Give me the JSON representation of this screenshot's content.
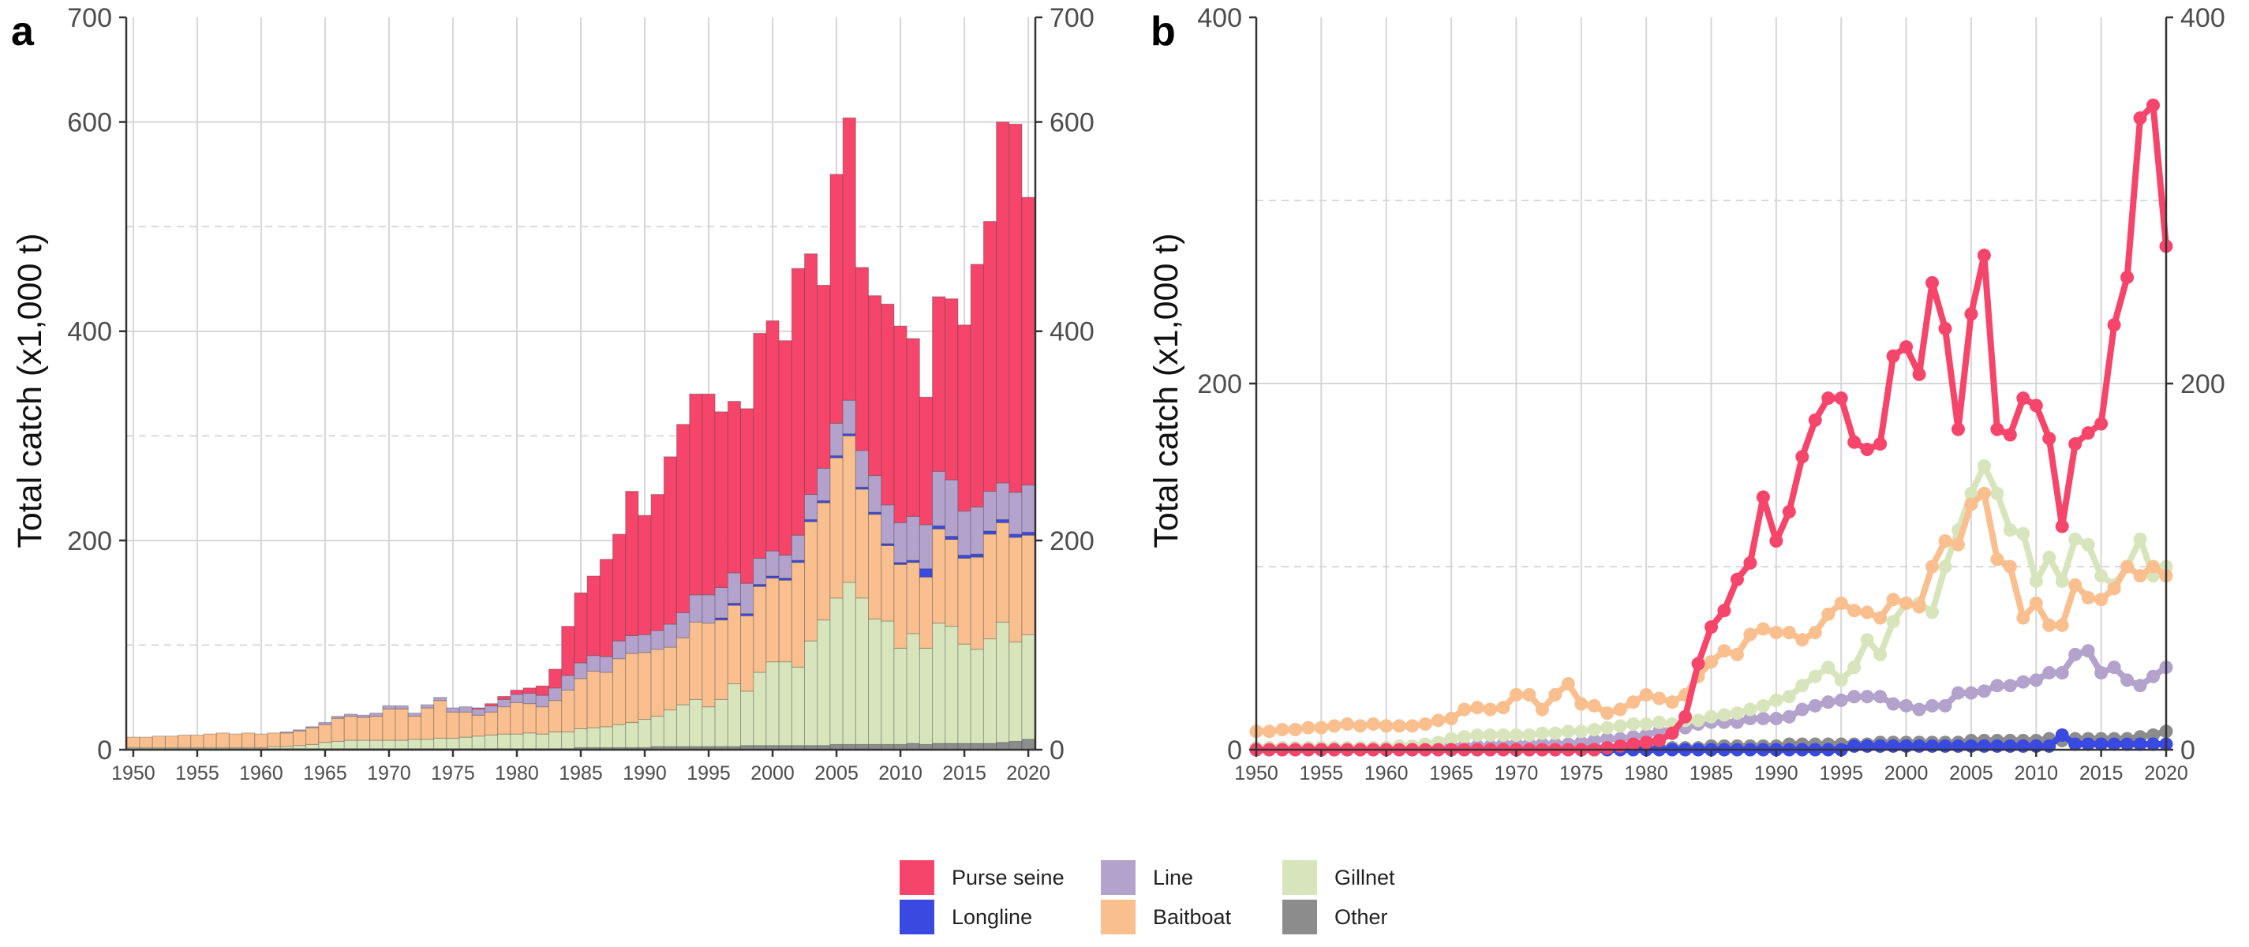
{
  "figure": {
    "panel_a_letter": "a",
    "panel_b_letter": "b",
    "y_axis_label": "Total catch (x1,000 t)"
  },
  "colors": {
    "Purse seine": "#f5456a",
    "Longline": "#3a49e0",
    "Line": "#b3a2cc",
    "Baitboat": "#f9bf8f",
    "Gillnet": "#d8e5bc",
    "Other": "#8c8c8c"
  },
  "legend": {
    "items": [
      {
        "name": "Purse seine",
        "color": "#f5456a"
      },
      {
        "name": "Longline",
        "color": "#3a49e0"
      },
      {
        "name": "Line",
        "color": "#b3a2cc"
      },
      {
        "name": "Baitboat",
        "color": "#f9bf8f"
      },
      {
        "name": "Gillnet",
        "color": "#d8e5bc"
      },
      {
        "name": "Other",
        "color": "#8c8c8c"
      }
    ]
  },
  "chart_data": [
    {
      "panel": "a",
      "type": "bar",
      "stacked": true,
      "title": "",
      "xlabel": "",
      "ylabel": "Total catch (x1,000 t)",
      "xlim": [
        1950,
        2020
      ],
      "ylim": [
        0,
        700
      ],
      "x_ticks": [
        "1950",
        "1955",
        "1960",
        "1965",
        "1970",
        "1975",
        "1980",
        "1985",
        "1990",
        "1995",
        "2000",
        "2005",
        "2010",
        "2015",
        "2020"
      ],
      "y_ticks": [
        "0",
        "200",
        "400",
        "600",
        "700"
      ],
      "grid": true,
      "secondary_y_axis": true,
      "x": [
        1950,
        1951,
        1952,
        1953,
        1954,
        1955,
        1956,
        1957,
        1958,
        1959,
        1960,
        1961,
        1962,
        1963,
        1964,
        1965,
        1966,
        1967,
        1968,
        1969,
        1970,
        1971,
        1972,
        1973,
        1974,
        1975,
        1976,
        1977,
        1978,
        1979,
        1980,
        1981,
        1982,
        1983,
        1984,
        1985,
        1986,
        1987,
        1988,
        1989,
        1990,
        1991,
        1992,
        1993,
        1994,
        1995,
        1996,
        1997,
        1998,
        1999,
        2000,
        2001,
        2002,
        2003,
        2004,
        2005,
        2006,
        2007,
        2008,
        2009,
        2010,
        2011,
        2012,
        2013,
        2014,
        2015,
        2016,
        2017,
        2018,
        2019,
        2020
      ],
      "series": [
        {
          "name": "Other",
          "values": [
            1,
            1,
            1,
            1,
            1,
            1,
            1,
            1,
            1,
            1,
            1,
            1,
            1,
            1,
            1,
            1,
            1,
            1,
            1,
            1,
            1,
            1,
            1,
            1,
            1,
            1,
            1,
            1,
            1,
            1,
            1,
            1,
            1,
            1,
            1,
            2,
            2,
            2,
            2,
            2,
            2,
            3,
            3,
            3,
            3,
            3,
            3,
            3,
            4,
            4,
            4,
            4,
            4,
            4,
            4,
            5,
            5,
            5,
            5,
            5,
            5,
            6,
            5,
            6,
            6,
            6,
            6,
            6,
            7,
            8,
            10
          ]
        },
        {
          "name": "Gillnet",
          "values": [
            1,
            1,
            1,
            1,
            1,
            1,
            1,
            1,
            1,
            1,
            1,
            2,
            2,
            3,
            4,
            6,
            7,
            8,
            8,
            8,
            8,
            8,
            9,
            9,
            10,
            10,
            11,
            12,
            13,
            14,
            14,
            15,
            14,
            16,
            16,
            18,
            19,
            20,
            22,
            24,
            27,
            29,
            35,
            40,
            45,
            38,
            45,
            60,
            52,
            70,
            80,
            80,
            75,
            100,
            120,
            140,
            155,
            140,
            120,
            118,
            92,
            105,
            92,
            115,
            112,
            95,
            90,
            100,
            115,
            95,
            100
          ]
        },
        {
          "name": "Baitboat",
          "values": [
            10,
            10,
            11,
            11,
            12,
            12,
            13,
            14,
            13,
            14,
            13,
            13,
            13,
            14,
            16,
            17,
            22,
            23,
            22,
            23,
            30,
            30,
            22,
            30,
            36,
            25,
            24,
            20,
            22,
            26,
            30,
            28,
            26,
            30,
            40,
            48,
            54,
            52,
            63,
            66,
            64,
            64,
            60,
            64,
            74,
            80,
            76,
            75,
            72,
            82,
            80,
            78,
            100,
            114,
            112,
            134,
            140,
            104,
            100,
            72,
            80,
            68,
            68,
            90,
            83,
            82,
            88,
            100,
            95,
            100,
            95
          ]
        },
        {
          "name": "Longline",
          "values": [
            0,
            0,
            0,
            0,
            0,
            0,
            0,
            0,
            0,
            0,
            0,
            0,
            0,
            0,
            0,
            0,
            0,
            0,
            0,
            0,
            0,
            0,
            0,
            0,
            0,
            0,
            0,
            0,
            0,
            0,
            0,
            0,
            0,
            0,
            0,
            0,
            0,
            0,
            0,
            0,
            0,
            0,
            0,
            0,
            0,
            0,
            2,
            2,
            2,
            2,
            2,
            2,
            2,
            2,
            2,
            2,
            2,
            2,
            2,
            2,
            2,
            2,
            8,
            3,
            3,
            3,
            3,
            3,
            3,
            3,
            3
          ]
        },
        {
          "name": "Line",
          "values": [
            0,
            0,
            0,
            0,
            0,
            0,
            0,
            0,
            0,
            0,
            0,
            0,
            1,
            1,
            1,
            2,
            2,
            2,
            2,
            3,
            3,
            3,
            3,
            3,
            3,
            4,
            5,
            6,
            6,
            7,
            8,
            10,
            11,
            12,
            14,
            15,
            15,
            15,
            17,
            17,
            17,
            18,
            22,
            24,
            26,
            27,
            29,
            29,
            29,
            25,
            24,
            22,
            24,
            24,
            31,
            31,
            32,
            35,
            35,
            37,
            38,
            42,
            42,
            52,
            54,
            42,
            45,
            38,
            35,
            40,
            45
          ]
        },
        {
          "name": "Purse seine",
          "values": [
            0,
            0,
            0,
            0,
            0,
            0,
            0,
            0,
            0,
            0,
            0,
            0,
            0,
            0,
            0,
            0,
            0,
            0,
            0,
            0,
            0,
            0,
            0,
            0,
            0,
            0,
            0,
            1,
            2,
            3,
            4,
            5,
            9,
            18,
            47,
            67,
            76,
            93,
            102,
            138,
            114,
            130,
            160,
            180,
            192,
            192,
            168,
            164,
            167,
            215,
            220,
            205,
            255,
            230,
            175,
            238,
            270,
            175,
            172,
            192,
            188,
            170,
            122,
            167,
            173,
            178,
            232,
            258,
            345,
            352,
            275
          ]
        }
      ]
    },
    {
      "panel": "b",
      "type": "line",
      "title": "",
      "xlabel": "",
      "ylabel": "Total catch (x1,000 t)",
      "xlim": [
        1950,
        2020
      ],
      "ylim": [
        0,
        400
      ],
      "x_ticks": [
        "1950",
        "1955",
        "1960",
        "1965",
        "1970",
        "1975",
        "1980",
        "1985",
        "1990",
        "1995",
        "2000",
        "2005",
        "2010",
        "2015",
        "2020"
      ],
      "y_ticks": [
        "0",
        "200",
        "400"
      ],
      "grid": true,
      "secondary_y_axis": true,
      "x": [
        1950,
        1951,
        1952,
        1953,
        1954,
        1955,
        1956,
        1957,
        1958,
        1959,
        1960,
        1961,
        1962,
        1963,
        1964,
        1965,
        1966,
        1967,
        1968,
        1969,
        1970,
        1971,
        1972,
        1973,
        1974,
        1975,
        1976,
        1977,
        1978,
        1979,
        1980,
        1981,
        1982,
        1983,
        1984,
        1985,
        1986,
        1987,
        1988,
        1989,
        1990,
        1991,
        1992,
        1993,
        1994,
        1995,
        1996,
        1997,
        1998,
        1999,
        2000,
        2001,
        2002,
        2003,
        2004,
        2005,
        2006,
        2007,
        2008,
        2009,
        2010,
        2011,
        2012,
        2013,
        2014,
        2015,
        2016,
        2017,
        2018,
        2019,
        2020
      ],
      "series": [
        {
          "name": "Other",
          "values": [
            1,
            1,
            1,
            1,
            1,
            1,
            1,
            1,
            1,
            1,
            1,
            1,
            1,
            1,
            1,
            1,
            1,
            1,
            1,
            1,
            1,
            1,
            1,
            1,
            1,
            1,
            1,
            1,
            1,
            1,
            1,
            1,
            1,
            1,
            1,
            2,
            2,
            2,
            2,
            2,
            2,
            3,
            3,
            3,
            3,
            3,
            3,
            3,
            4,
            4,
            4,
            4,
            4,
            4,
            4,
            5,
            5,
            5,
            5,
            5,
            5,
            6,
            5,
            6,
            6,
            6,
            6,
            6,
            7,
            8,
            10
          ]
        },
        {
          "name": "Longline",
          "values": [
            0,
            0,
            0,
            0,
            0,
            0,
            0,
            0,
            0,
            0,
            0,
            0,
            0,
            0,
            0,
            0,
            0,
            0,
            0,
            0,
            0,
            0,
            0,
            0,
            0,
            0,
            0,
            0,
            0,
            0,
            0,
            0,
            0,
            0,
            0,
            0,
            0,
            0,
            0,
            0,
            0,
            0,
            0,
            0,
            0,
            0,
            2,
            2,
            2,
            2,
            2,
            2,
            2,
            2,
            2,
            2,
            2,
            2,
            2,
            2,
            2,
            2,
            8,
            3,
            3,
            3,
            3,
            3,
            3,
            3,
            3
          ]
        },
        {
          "name": "Line",
          "values": [
            0,
            0,
            0,
            0,
            0,
            0,
            0,
            0,
            0,
            0,
            0,
            0,
            1,
            1,
            1,
            2,
            2,
            2,
            2,
            3,
            3,
            3,
            3,
            3,
            3,
            4,
            5,
            6,
            6,
            7,
            8,
            10,
            11,
            12,
            14,
            15,
            15,
            15,
            17,
            17,
            17,
            18,
            22,
            24,
            26,
            27,
            29,
            29,
            29,
            25,
            24,
            22,
            24,
            24,
            31,
            31,
            32,
            35,
            35,
            37,
            38,
            42,
            42,
            52,
            54,
            42,
            45,
            38,
            35,
            40,
            45
          ]
        },
        {
          "name": "Gillnet",
          "values": [
            1,
            1,
            1,
            1,
            1,
            1,
            1,
            1,
            1,
            1,
            1,
            2,
            2,
            3,
            4,
            6,
            7,
            8,
            8,
            8,
            8,
            8,
            9,
            9,
            10,
            10,
            11,
            12,
            13,
            14,
            14,
            15,
            14,
            16,
            16,
            18,
            19,
            20,
            22,
            24,
            27,
            29,
            35,
            40,
            45,
            38,
            45,
            60,
            52,
            70,
            80,
            80,
            75,
            100,
            120,
            140,
            155,
            140,
            120,
            118,
            92,
            105,
            92,
            115,
            112,
            95,
            90,
            100,
            115,
            95,
            100
          ]
        },
        {
          "name": "Baitboat",
          "values": [
            10,
            10,
            11,
            11,
            12,
            12,
            13,
            14,
            13,
            14,
            13,
            13,
            13,
            14,
            16,
            17,
            22,
            23,
            22,
            23,
            30,
            30,
            22,
            30,
            36,
            25,
            24,
            20,
            22,
            26,
            30,
            28,
            26,
            30,
            40,
            48,
            54,
            52,
            63,
            66,
            64,
            64,
            60,
            64,
            74,
            80,
            76,
            75,
            72,
            82,
            80,
            78,
            100,
            114,
            112,
            134,
            140,
            104,
            100,
            72,
            80,
            68,
            68,
            90,
            83,
            82,
            88,
            100,
            95,
            100,
            95
          ]
        },
        {
          "name": "Purse seine",
          "values": [
            0,
            0,
            0,
            0,
            0,
            0,
            0,
            0,
            0,
            0,
            0,
            0,
            0,
            0,
            0,
            0,
            0,
            0,
            0,
            0,
            0,
            0,
            0,
            0,
            0,
            0,
            0,
            1,
            2,
            3,
            4,
            5,
            9,
            18,
            47,
            67,
            76,
            93,
            102,
            138,
            114,
            130,
            160,
            180,
            192,
            192,
            168,
            164,
            167,
            215,
            220,
            205,
            255,
            230,
            175,
            238,
            270,
            175,
            172,
            192,
            188,
            170,
            122,
            167,
            173,
            178,
            232,
            258,
            345,
            352,
            275
          ]
        }
      ]
    }
  ]
}
